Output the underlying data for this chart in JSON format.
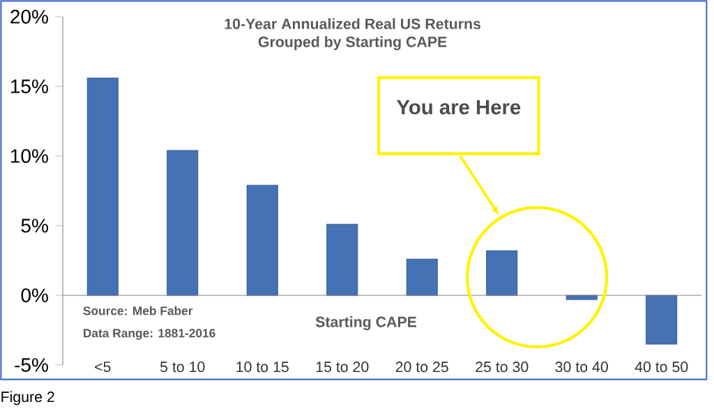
{
  "chart_data": {
    "type": "bar",
    "title": "10-Year Annualized Real US Returns",
    "subtitle": "Grouped by Starting CAPE",
    "xlabel": "Starting CAPE",
    "categories": [
      "<5",
      "5 to 10",
      "10 to 15",
      "15 to 20",
      "20 to 25",
      "25 to 30",
      "30 to 40",
      "40 to 50"
    ],
    "values": [
      15.6,
      10.4,
      7.9,
      5.1,
      2.6,
      3.2,
      -0.3,
      -3.5
    ],
    "color": "#4472b4",
    "ylim": [
      -5,
      20
    ],
    "yticks": [
      {
        "value": -5,
        "label": "-5%"
      },
      {
        "value": 0,
        "label": "0%"
      },
      {
        "value": 5,
        "label": "5%"
      },
      {
        "value": 10,
        "label": "10%"
      },
      {
        "value": 15,
        "label": "15%"
      },
      {
        "value": 20,
        "label": "20%"
      }
    ],
    "annotations": [
      "Source: Meb Faber",
      "Data Range: 1881-2016",
      "You are Here",
      "Figure 2"
    ]
  }
}
